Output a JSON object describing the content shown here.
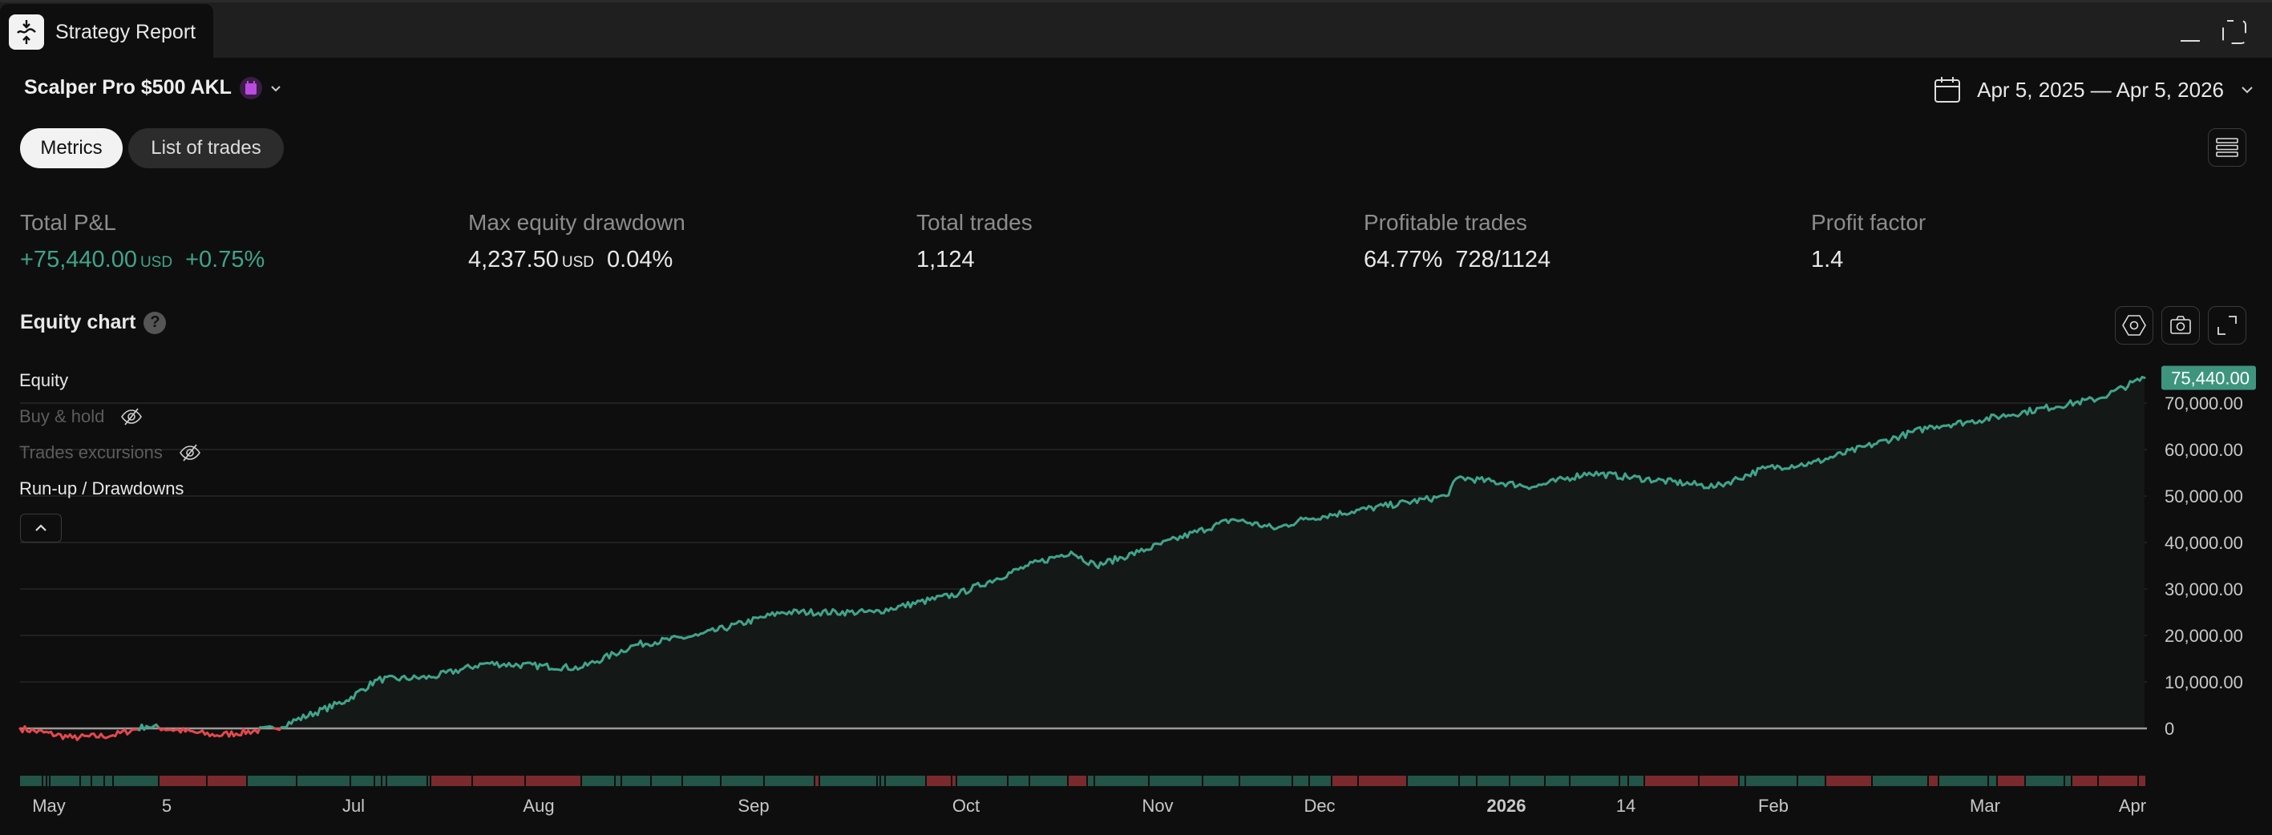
{
  "window": {
    "tab_title": "Strategy Report",
    "logo_icon": "strategy-logo-icon",
    "minimize_icon": "minimize-icon",
    "maximize_icon": "maximize-icon"
  },
  "header": {
    "strategy_name": "Scalper Pro $500 AKL",
    "calendar_badge_color": "#b94be0",
    "date_range": "Apr 5, 2025 — Apr 5, 2026"
  },
  "tabs": [
    {
      "label": "Metrics",
      "active": true
    },
    {
      "label": "List of trades",
      "active": false
    }
  ],
  "metrics": [
    {
      "label": "Total P&L",
      "value": "+75,440.00",
      "unit": "USD",
      "extra": "+0.75%",
      "positive": true
    },
    {
      "label": "Max equity drawdown",
      "value": "4,237.50",
      "unit": "USD",
      "extra": "0.04%"
    },
    {
      "label": "Total trades",
      "value": "1,124"
    },
    {
      "label": "Profitable trades",
      "value": "64.77%",
      "extra": "728/1124"
    },
    {
      "label": "Profit factor",
      "value": "1.4"
    }
  ],
  "chart_section": {
    "title": "Equity chart",
    "help_label": "?",
    "legend": [
      {
        "label": "Equity",
        "visible": true
      },
      {
        "label": "Buy & hold",
        "visible": false
      },
      {
        "label": "Trades excursions",
        "visible": false
      },
      {
        "label": "Run-up / Drawdowns",
        "visible": true
      }
    ]
  },
  "colors": {
    "positive": "#3fa58a",
    "negative": "#e5484d",
    "background": "#0e0e0e",
    "win_bar": "#235448",
    "loss_bar": "#7a2a2d"
  },
  "chart_data": {
    "type": "line",
    "title": "",
    "ylim": [
      0,
      75440
    ],
    "y_ticks": [
      "0",
      "10,000.00",
      "20,000.00",
      "30,000.00",
      "40,000.00",
      "50,000.00",
      "60,000.00",
      "70,000.00"
    ],
    "y_tick_values": [
      0,
      10000,
      20000,
      30000,
      40000,
      50000,
      60000,
      70000
    ],
    "x_ticks": [
      "May",
      "5",
      "Jul",
      "Aug",
      "Sep",
      "Oct",
      "Nov",
      "Dec",
      "2026",
      "14",
      "Feb",
      "Mar",
      "Apr"
    ],
    "last_value_label": "75,440.00",
    "grid": true,
    "series": [
      {
        "name": "Equity",
        "points": [
          [
            "2025-04-24",
            0
          ],
          [
            "2025-05-08",
            -2000
          ],
          [
            "2025-05-20",
            -1500
          ],
          [
            "2025-05-30",
            500
          ],
          [
            "2025-06-12",
            -1500
          ],
          [
            "2025-06-20",
            0
          ],
          [
            "2025-06-30",
            6000
          ],
          [
            "2025-07-05",
            10500
          ],
          [
            "2025-07-14",
            11000
          ],
          [
            "2025-07-23",
            14000
          ],
          [
            "2025-08-07",
            13000
          ],
          [
            "2025-08-15",
            18000
          ],
          [
            "2025-08-24",
            20000
          ],
          [
            "2025-09-05",
            25000
          ],
          [
            "2025-09-18",
            25000
          ],
          [
            "2025-09-30",
            29000
          ],
          [
            "2025-10-11",
            35000
          ],
          [
            "2025-10-18",
            38000
          ],
          [
            "2025-10-22",
            35000
          ],
          [
            "2025-10-29",
            38000
          ],
          [
            "2025-11-15",
            45000
          ],
          [
            "2025-11-23",
            43000
          ],
          [
            "2025-11-28",
            45000
          ],
          [
            "2025-12-22",
            50000
          ],
          [
            "2025-12-24",
            54000
          ],
          [
            "2026-01-04",
            52000
          ],
          [
            "2026-01-10",
            55000
          ],
          [
            "2026-01-25",
            52000
          ],
          [
            "2026-01-31",
            56000
          ],
          [
            "2026-02-06",
            57000
          ],
          [
            "2026-02-22",
            65000
          ],
          [
            "2026-02-27",
            66000
          ],
          [
            "2026-03-25",
            71000
          ],
          [
            "2026-04-03",
            75440
          ]
        ]
      }
    ]
  }
}
